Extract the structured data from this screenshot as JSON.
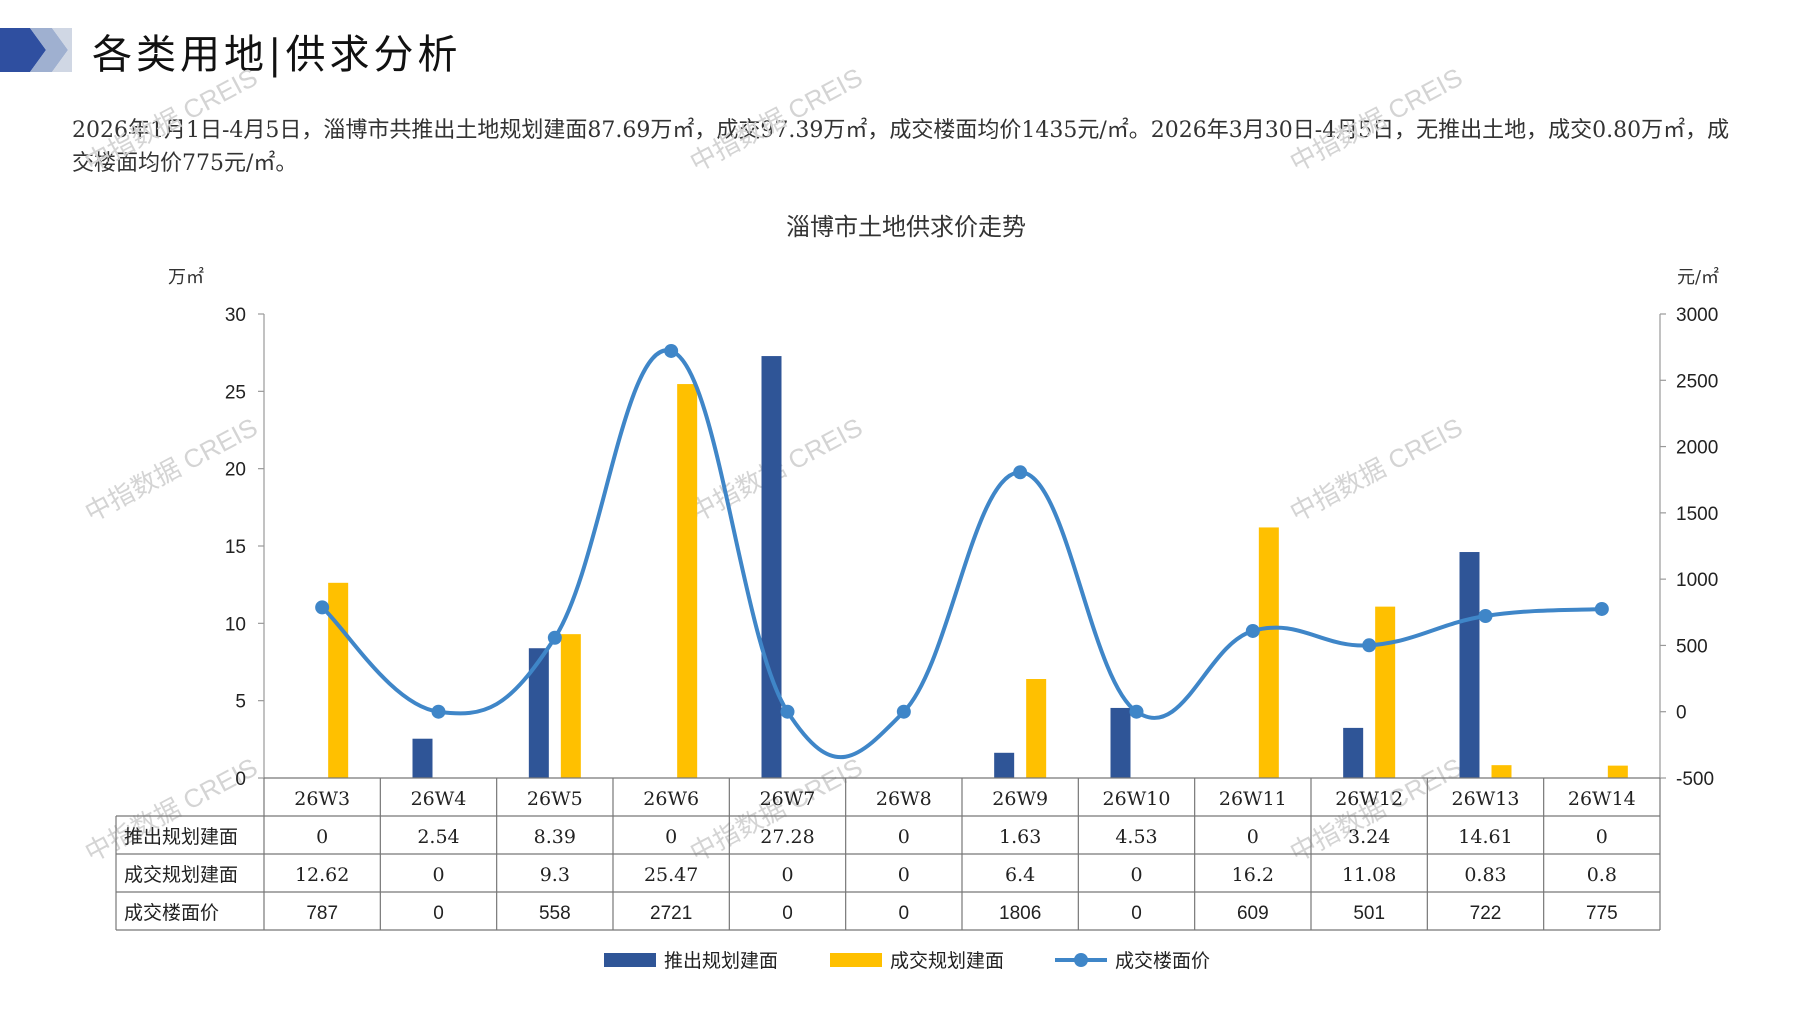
{
  "header": {
    "title": "各类用地|供求分析",
    "summary": "2026年1月1日-4月5日，淄博市共推出土地规划建面87.69万㎡，成交97.39万㎡，成交楼面均价1435元/㎡。2026年3月30日-4月5日，无推出土地，成交0.80万㎡，成交楼面均价775元/㎡。"
  },
  "watermark": "中指数据 CREIS",
  "chart_data": {
    "type": "bar",
    "title": "淄博市土地供求价走势",
    "left_unit": "万㎡",
    "right_unit": "元/㎡",
    "y_left": {
      "min": 0,
      "max": 30,
      "ticks": [
        0,
        5,
        10,
        15,
        20,
        25,
        30
      ]
    },
    "y_right": {
      "min": -500,
      "max": 3000,
      "ticks": [
        -500,
        0,
        500,
        1000,
        1500,
        2000,
        2500,
        3000
      ]
    },
    "categories": [
      "26W3",
      "26W4",
      "26W5",
      "26W6",
      "26W7",
      "26W8",
      "26W9",
      "26W10",
      "26W11",
      "26W12",
      "26W13",
      "26W14"
    ],
    "series": [
      {
        "name": "推出规划建面",
        "type": "bar",
        "axis": "left",
        "color": "#2f5597",
        "values": [
          0,
          2.54,
          8.39,
          0,
          27.28,
          0,
          1.63,
          4.53,
          0,
          3.24,
          14.61,
          0
        ],
        "labels": [
          "0",
          "2.54",
          "8.39",
          "0",
          "27.28",
          "0",
          "1.63",
          "4.53",
          "0",
          "3.24",
          "14.61",
          "0"
        ]
      },
      {
        "name": "成交规划建面",
        "type": "bar",
        "axis": "left",
        "color": "#ffc000",
        "values": [
          12.62,
          0,
          9.3,
          25.47,
          0,
          0,
          6.4,
          0,
          16.2,
          11.08,
          0.83,
          0.8
        ],
        "labels": [
          "12.62",
          "0",
          "9.3",
          "25.47",
          "0",
          "0",
          "6.4",
          "0",
          "16.2",
          "11.08",
          "0.83",
          "0.8"
        ]
      },
      {
        "name": "成交楼面价",
        "type": "line",
        "axis": "right",
        "color": "#3f86c8",
        "values": [
          787,
          0,
          558,
          2721,
          0,
          0,
          1806,
          0,
          609,
          501,
          722,
          775
        ],
        "labels": [
          "787",
          "0",
          "558",
          "2721",
          "0",
          "0",
          "1806",
          "0",
          "609",
          "501",
          "722",
          "775"
        ]
      }
    ]
  }
}
